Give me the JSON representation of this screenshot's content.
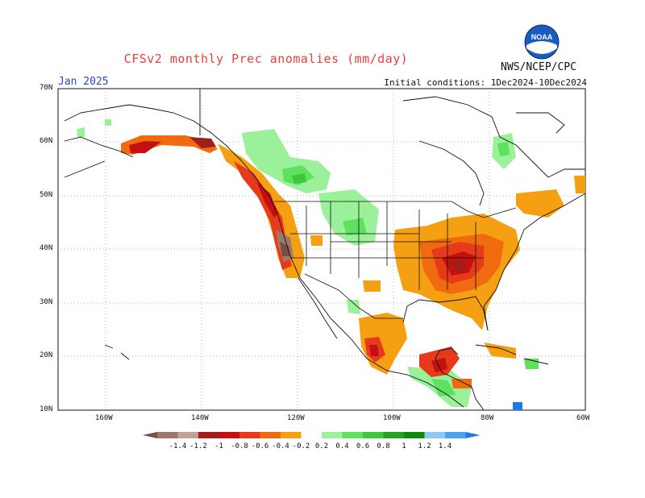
{
  "header": {
    "title": "CFSv2 monthly Prec anomalies (mm/day)",
    "org": "NWS/NCEP/CPC",
    "month": "Jan 2025",
    "initial_conditions": "Initial conditions: 1Dec2024-10Dec2024"
  },
  "axes": {
    "lat_labels": [
      "70N",
      "60N",
      "50N",
      "40N",
      "30N",
      "20N",
      "10N"
    ],
    "lon_labels": [
      "160W",
      "140W",
      "120W",
      "100W",
      "80W",
      "60W"
    ]
  },
  "colorbar": {
    "labels": [
      "-1.4",
      "-1.2",
      "-1",
      "-0.8",
      "-0.6",
      "-0.4",
      "-0.2",
      "0.2",
      "0.4",
      "0.6",
      "0.8",
      "1",
      "1.2",
      "1.4"
    ],
    "colors": [
      "#7a4e43",
      "#a0776b",
      "#c4a196",
      "#a01f1a",
      "#c41010",
      "#e63b1a",
      "#f06a10",
      "#f59f12",
      "#ffffff",
      "#9af19a",
      "#5fe05f",
      "#3fc63f",
      "#22a422",
      "#0f8a0f",
      "#8fc8f5",
      "#4aa3f0",
      "#1f78e6"
    ]
  },
  "colors": {
    "dry": "#f59f12",
    "very_dry": "#c41010",
    "wet": "#9af19a",
    "coast": "#111111"
  }
}
